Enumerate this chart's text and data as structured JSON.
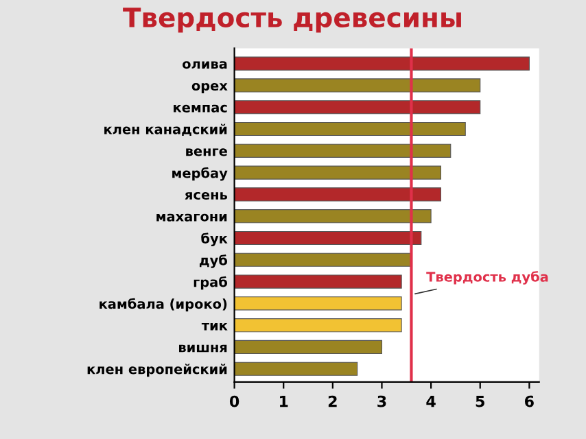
{
  "chart_data": {
    "type": "bar",
    "orientation": "horizontal",
    "title": "Твердость древесины",
    "categories": [
      "олива",
      "орех",
      "кемпас",
      "клен канадский",
      "венге",
      "мербау",
      "ясень",
      "махагони",
      "бук",
      "дуб",
      "граб",
      "камбала (ироко)",
      "тик",
      "вишня",
      "клен европейский"
    ],
    "values": [
      6.0,
      5.0,
      5.0,
      4.7,
      4.4,
      4.2,
      4.2,
      4.0,
      3.8,
      3.6,
      3.4,
      3.4,
      3.4,
      3.0,
      2.5
    ],
    "colors": [
      "#b3282a",
      "#9a8422",
      "#b3282a",
      "#9a8422",
      "#9a8422",
      "#9a8422",
      "#b3282a",
      "#9a8422",
      "#b3282a",
      "#9a8422",
      "#b3282a",
      "#f2c233",
      "#f2c233",
      "#9a8422",
      "#9a8422"
    ],
    "xlim": [
      0,
      6.2
    ],
    "xticks": [
      0,
      1,
      2,
      3,
      4,
      5,
      6
    ],
    "grid": false,
    "ref_lines": [
      {
        "axis": "x",
        "value": 3.6,
        "label": "Твердость дуба",
        "color": "#e0304a"
      }
    ]
  }
}
